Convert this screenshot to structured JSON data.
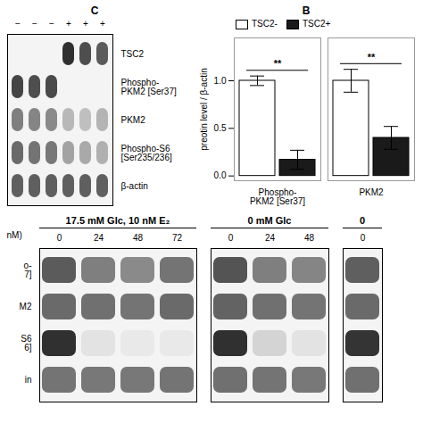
{
  "chart_data": [
    {
      "type": "heatmap",
      "title": "C",
      "x": [
        "−",
        "−",
        "−",
        "+",
        "+",
        "+"
      ],
      "y": [
        "TSC2",
        "Phospho-\nPKM2 [Ser37]",
        "PKM2",
        "Phospho-S6\n[Ser235/236]",
        "β-actin"
      ],
      "values": [
        [
          0,
          0,
          0,
          0.92,
          0.78,
          0.72
        ],
        [
          0.82,
          0.78,
          0.8,
          0,
          0,
          0
        ],
        [
          0.55,
          0.52,
          0.5,
          0.28,
          0.25,
          0.3
        ],
        [
          0.65,
          0.6,
          0.58,
          0.38,
          0.35,
          0.32
        ],
        [
          0.7,
          0.7,
          0.7,
          0.7,
          0.7,
          0.7
        ]
      ],
      "zlim": [
        0,
        1
      ]
    },
    {
      "type": "bar",
      "title": "B",
      "categories": [
        "Phospho-\nPKM2 [Ser37]",
        "PKM2"
      ],
      "series": [
        {
          "name": "TSC2-",
          "color": "#ffffff",
          "values": [
            1.0,
            1.0
          ],
          "errors": [
            0.05,
            0.12
          ]
        },
        {
          "name": "TSC2+",
          "color": "#1a1a1a",
          "values": [
            0.17,
            0.4
          ],
          "errors": [
            0.1,
            0.12
          ]
        }
      ],
      "ylabel": "preotin level / β-actin",
      "ylim": [
        -0.05,
        1.45
      ],
      "yticks": [
        {
          "value": 0,
          "label": "0.0"
        },
        {
          "value": 0.5,
          "label": "0.5"
        },
        {
          "value": 1,
          "label": "1.0"
        }
      ],
      "legend": "upper left",
      "annotations": [
        "**",
        "**"
      ]
    },
    {
      "type": "heatmap",
      "title": "17.5 mM Glc, 10 nM E₂",
      "x": [
        "0",
        "24",
        "48",
        "72"
      ],
      "y": [
        "o-\n7]",
        "M2",
        "S6\n6]",
        "in"
      ],
      "ylabel": "nM)",
      "values": [
        [
          0.72,
          0.55,
          0.5,
          0.6
        ],
        [
          0.65,
          0.62,
          0.6,
          0.65
        ],
        [
          0.92,
          0.08,
          0.05,
          0.05
        ],
        [
          0.6,
          0.58,
          0.58,
          0.6
        ]
      ],
      "zlim": [
        0,
        1
      ]
    },
    {
      "type": "heatmap",
      "title": "0 mM Glc",
      "x": [
        "0",
        "24",
        "48"
      ],
      "values": [
        [
          0.75,
          0.55,
          0.52
        ],
        [
          0.68,
          0.62,
          0.6
        ],
        [
          0.92,
          0.15,
          0.08
        ],
        [
          0.62,
          0.6,
          0.58
        ]
      ],
      "zlim": [
        0,
        1
      ],
      "tick_labels": "x"
    },
    {
      "type": "heatmap",
      "title": "0",
      "x": [
        "0"
      ],
      "values": [
        [
          0.7
        ],
        [
          0.65
        ],
        [
          0.9
        ],
        [
          0.62
        ]
      ],
      "zlim": [
        0,
        1
      ],
      "tick_labels": "x"
    }
  ]
}
